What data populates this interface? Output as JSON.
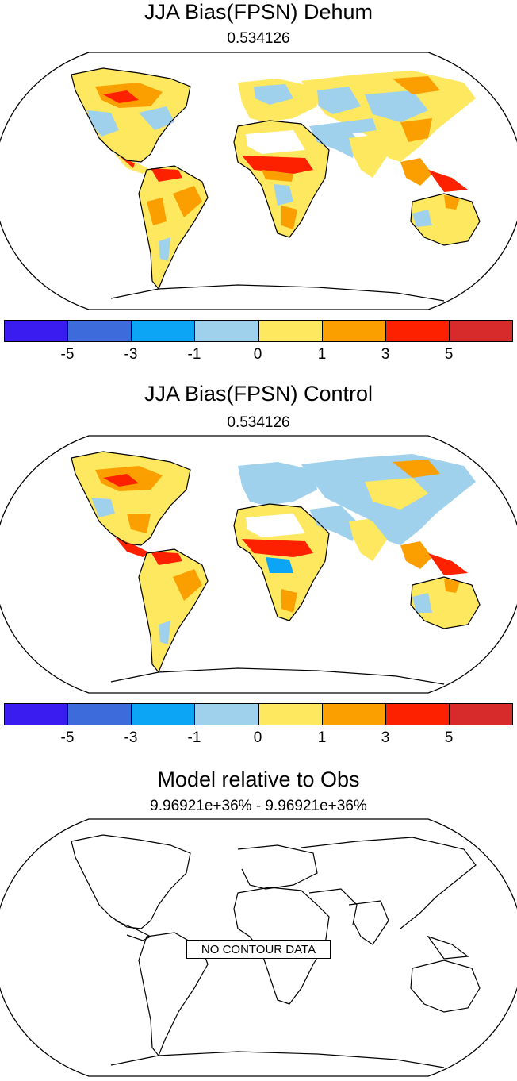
{
  "panels": [
    {
      "title": "JJA Bias(FPSN) Dehum",
      "subtitle": "0.534126",
      "colorbar": {
        "colors": [
          "#3b1cf0",
          "#3d6bdb",
          "#0ca4f5",
          "#9fd0ec",
          "#fde85f",
          "#fb9f00",
          "#fe2100",
          "#d72b2b"
        ],
        "ticks": [
          "-5",
          "-3",
          "-1",
          "0",
          "1",
          "3",
          "5"
        ]
      }
    },
    {
      "title": "JJA Bias(FPSN) Control",
      "subtitle": "0.534126",
      "colorbar": {
        "colors": [
          "#3b1cf0",
          "#3d6bdb",
          "#0ca4f5",
          "#9fd0ec",
          "#fde85f",
          "#fb9f00",
          "#fe2100",
          "#d72b2b"
        ],
        "ticks": [
          "-5",
          "-3",
          "-1",
          "0",
          "1",
          "3",
          "5"
        ]
      }
    },
    {
      "title": "Model relative to Obs",
      "subtitle": "9.96921e+36% - 9.96921e+36%",
      "no_data_label": "NO CONTOUR DATA"
    }
  ]
}
